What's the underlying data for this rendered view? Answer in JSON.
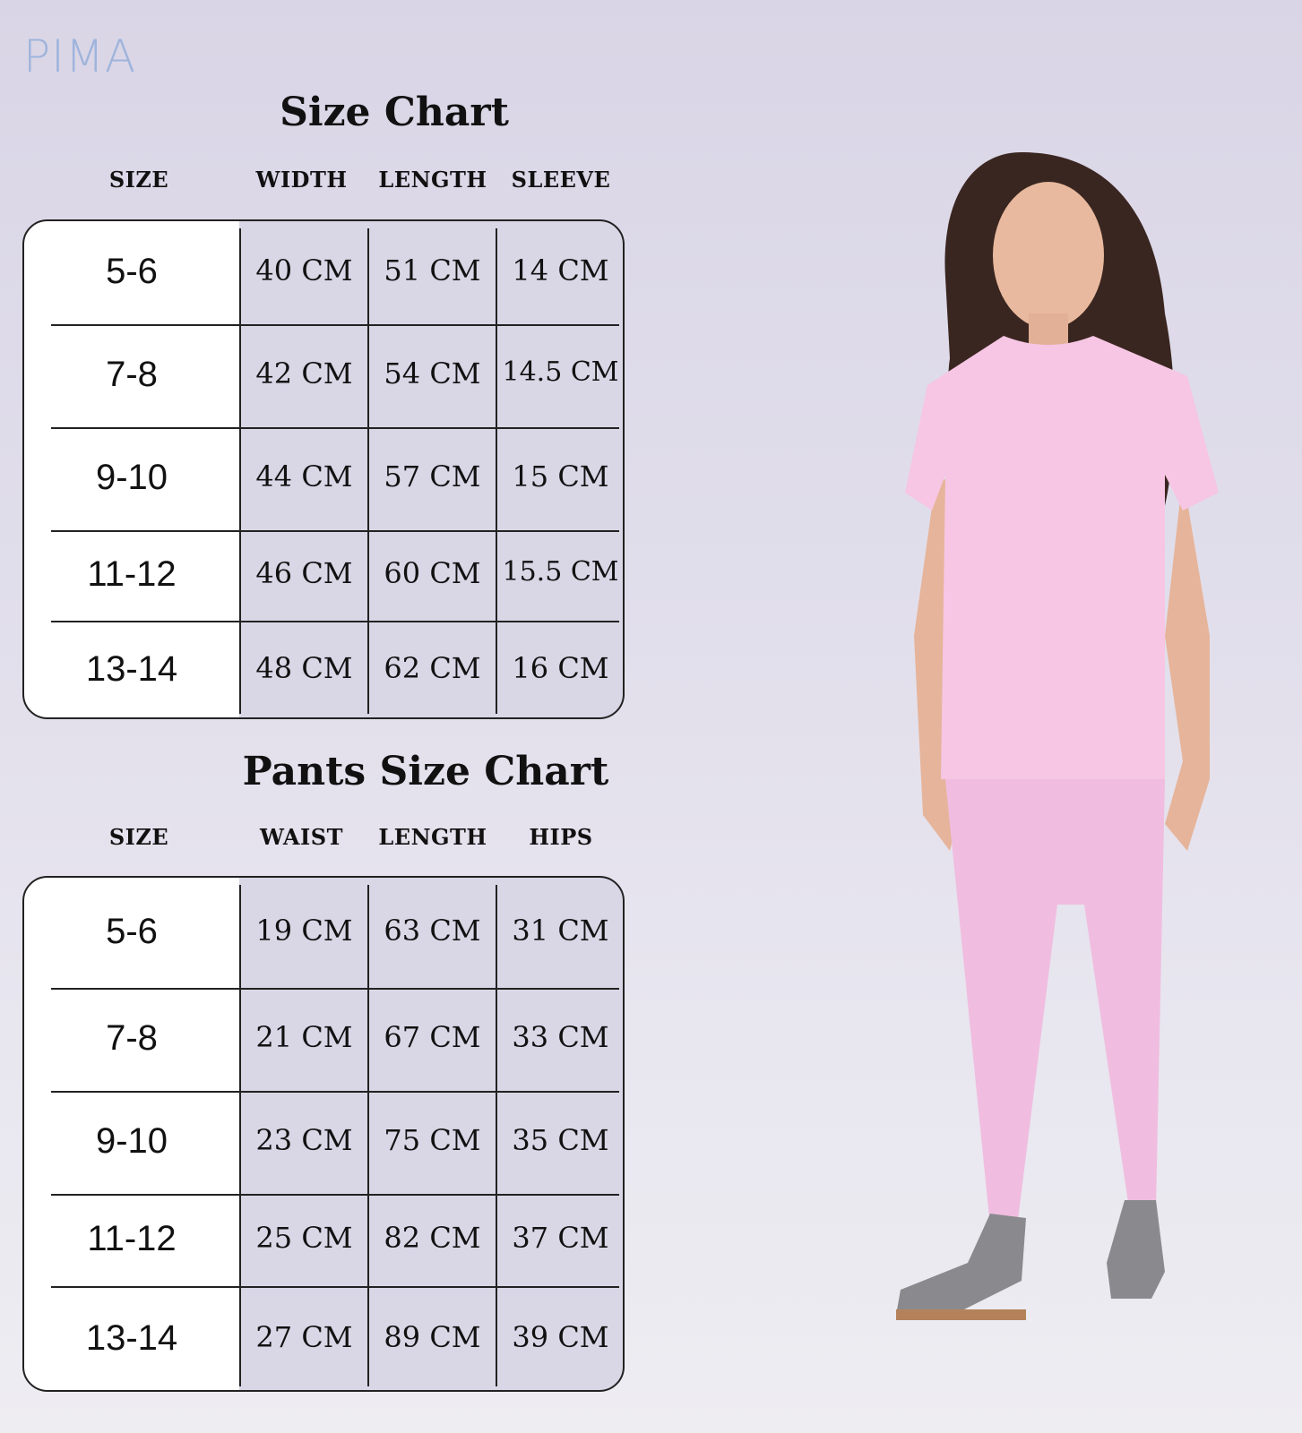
{
  "brand": {
    "logo": "PIMA"
  },
  "shirt_chart": {
    "title": "Size Chart",
    "headers": [
      "SIZE",
      "WIDTH",
      "LENGTH",
      "SLEEVE"
    ],
    "rows": [
      {
        "size": "5-6",
        "values": [
          "40 CM",
          "51 CM",
          "14 CM"
        ]
      },
      {
        "size": "7-8",
        "values": [
          "42 CM",
          "54 CM",
          "14.5 CM"
        ]
      },
      {
        "size": "9-10",
        "values": [
          "44 CM",
          "57 CM",
          "15 CM"
        ]
      },
      {
        "size": "11-12",
        "values": [
          "46 CM",
          "60 CM",
          "15.5 CM"
        ]
      },
      {
        "size": "13-14",
        "values": [
          "48 CM",
          "62 CM",
          "16 CM"
        ]
      }
    ]
  },
  "pants_chart": {
    "title": "Pants Size Chart",
    "headers": [
      "SIZE",
      "WAIST",
      "LENGTH",
      "HIPS"
    ],
    "rows": [
      {
        "size": "5-6",
        "values": [
          "19 CM",
          "63 CM",
          "31 CM"
        ]
      },
      {
        "size": "7-8",
        "values": [
          "21 CM",
          "67 CM",
          "33 CM"
        ]
      },
      {
        "size": "9-10",
        "values": [
          "23 CM",
          "75 CM",
          "35 CM"
        ]
      },
      {
        "size": "11-12",
        "values": [
          "25 CM",
          "82 CM",
          "37 CM"
        ]
      },
      {
        "size": "13-14",
        "values": [
          "27 CM",
          "89 CM",
          "39 CM"
        ]
      }
    ]
  },
  "colors": {
    "shirt": "#f6c6e4",
    "leggings": "#f0bde0",
    "background": "#dcd8e8"
  }
}
